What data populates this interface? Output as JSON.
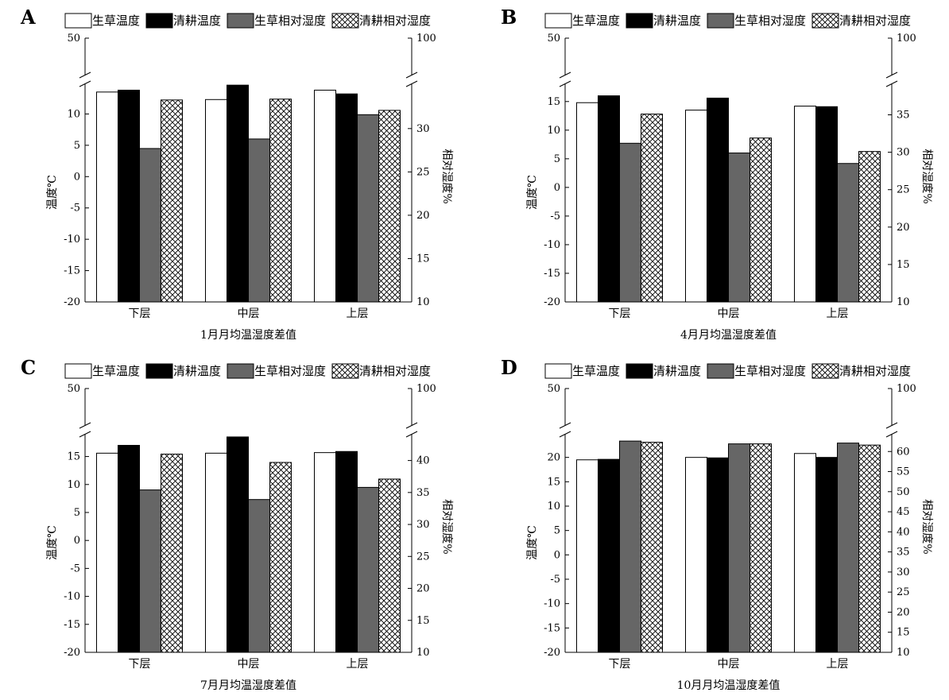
{
  "legend": [
    "生草温度",
    "清耕温度",
    "生草相对湿度",
    "清耕相对湿度"
  ],
  "colors": {
    "grass_temp": "#ffffff",
    "clean_temp": "#000000",
    "grass_rh": "#666666",
    "clean_rh": "hatch"
  },
  "chart_data": [
    {
      "type": "bar",
      "label": "A",
      "title": "1月月均温湿度差值",
      "categories": [
        "下层",
        "中层",
        "上层"
      ],
      "xlabel": "1月月均温湿度差值",
      "ylabel": "温度℃",
      "y2label": "相对湿度%",
      "ylim": [
        -20,
        15
      ],
      "ytop": 50,
      "yticks": [
        -20,
        -15,
        -10,
        -5,
        0,
        5,
        10
      ],
      "y2lim": [
        10,
        35.3
      ],
      "y2top": 100,
      "y2ticks": [
        10,
        15,
        20,
        25,
        30
      ],
      "axis_break": true,
      "grid": false,
      "legend_position": "top",
      "series": [
        {
          "name": "生草温度",
          "axis": "left",
          "values": [
            13.5,
            12.3,
            13.8
          ]
        },
        {
          "name": "清耕温度",
          "axis": "left",
          "values": [
            13.8,
            14.6,
            13.2
          ]
        },
        {
          "name": "生草相对湿度",
          "axis": "right",
          "values": [
            27.7,
            28.8,
            31.6
          ]
        },
        {
          "name": "清耕相对湿度",
          "axis": "right",
          "values": [
            33.3,
            33.4,
            32.1
          ]
        }
      ]
    },
    {
      "type": "bar",
      "label": "B",
      "title": "4月月均温湿度差值",
      "categories": [
        "下层",
        "中层",
        "上层"
      ],
      "xlabel": "4月月均温湿度差值",
      "ylabel": "温度℃",
      "y2label": "相对湿度%",
      "ylim": [
        -20,
        18.3
      ],
      "ytop": 50,
      "yticks": [
        -20,
        -15,
        -10,
        -5,
        0,
        5,
        10,
        15
      ],
      "y2lim": [
        10,
        39.3
      ],
      "y2top": 100,
      "y2ticks": [
        10,
        15,
        20,
        25,
        30,
        35
      ],
      "axis_break": true,
      "grid": false,
      "legend_position": "top",
      "series": [
        {
          "name": "生草温度",
          "axis": "left",
          "values": [
            14.8,
            13.5,
            14.2
          ]
        },
        {
          "name": "清耕温度",
          "axis": "left",
          "values": [
            16.0,
            15.6,
            14.1
          ]
        },
        {
          "name": "生草相对湿度",
          "axis": "right",
          "values": [
            31.2,
            29.9,
            28.5
          ]
        },
        {
          "name": "清耕相对湿度",
          "axis": "right",
          "values": [
            35.1,
            31.9,
            30.1
          ]
        }
      ]
    },
    {
      "type": "bar",
      "label": "C",
      "title": "7月月均温湿度差值",
      "categories": [
        "下层",
        "中层",
        "上层"
      ],
      "xlabel": "7月月均温湿度差值",
      "ylabel": "温度℃",
      "y2label": "相对湿度%",
      "ylim": [
        -20,
        19.2
      ],
      "ytop": 50,
      "yticks": [
        -20,
        -15,
        -10,
        -5,
        0,
        5,
        10,
        15
      ],
      "y2lim": [
        10,
        44.3
      ],
      "y2top": 100,
      "y2ticks": [
        10,
        15,
        20,
        25,
        30,
        35,
        40
      ],
      "axis_break": true,
      "grid": false,
      "legend_position": "top",
      "series": [
        {
          "name": "生草温度",
          "axis": "left",
          "values": [
            15.6,
            15.6,
            15.7
          ]
        },
        {
          "name": "清耕温度",
          "axis": "left",
          "values": [
            17.0,
            18.5,
            15.9
          ]
        },
        {
          "name": "生草相对湿度",
          "axis": "right",
          "values": [
            35.4,
            33.9,
            35.8
          ]
        },
        {
          "name": "清耕相对湿度",
          "axis": "right",
          "values": [
            41.0,
            39.7,
            37.1
          ]
        }
      ]
    },
    {
      "type": "bar",
      "label": "D",
      "title": "10月月均温湿度差值",
      "categories": [
        "下层",
        "中层",
        "上层"
      ],
      "xlabel": "10月月均温湿度差值",
      "ylabel": "温度℃",
      "y2label": "相对湿度%",
      "ylim": [
        -20,
        25
      ],
      "ytop": 50,
      "yticks": [
        -20,
        -15,
        -10,
        -5,
        0,
        5,
        10,
        15,
        20
      ],
      "y2lim": [
        10,
        64.6
      ],
      "y2top": 100,
      "y2ticks": [
        10,
        15,
        20,
        25,
        30,
        35,
        40,
        45,
        50,
        55,
        60
      ],
      "axis_break": true,
      "grid": false,
      "legend_position": "top",
      "series": [
        {
          "name": "生草温度",
          "axis": "left",
          "values": [
            19.5,
            20.0,
            20.8
          ]
        },
        {
          "name": "清耕温度",
          "axis": "left",
          "values": [
            19.6,
            19.9,
            20.0
          ]
        },
        {
          "name": "生草相对湿度",
          "axis": "right",
          "values": [
            62.6,
            61.9,
            62.1
          ]
        },
        {
          "name": "清耕相对湿度",
          "axis": "right",
          "values": [
            62.3,
            61.9,
            61.6
          ]
        }
      ]
    }
  ]
}
